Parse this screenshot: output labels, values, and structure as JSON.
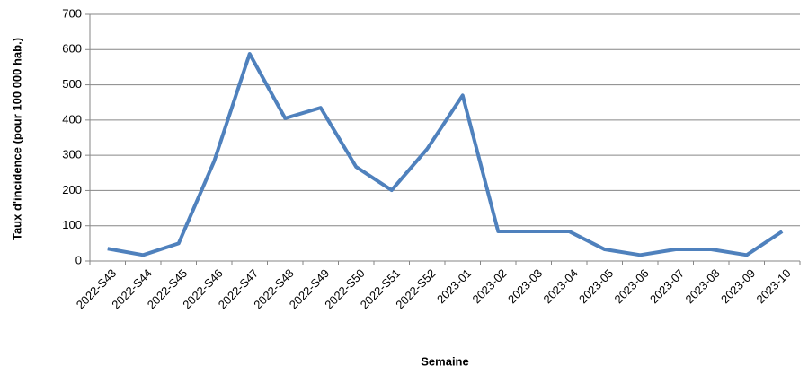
{
  "chart_data": {
    "type": "line",
    "x_label": "Semaine",
    "y_label": "Taux d'incidence (pour 100 000 hab.)",
    "categories": [
      "2022-S43",
      "2022-S44",
      "2022-S45",
      "2022-S46",
      "2022-S47",
      "2022-S48",
      "2022-S49",
      "2022-S50",
      "2022-S51",
      "2022-S52",
      "2023-01",
      "2023-02",
      "2023-03",
      "2023-04",
      "2023-05",
      "2023-06",
      "2023-07",
      "2023-08",
      "2023-09",
      "2023-10"
    ],
    "values": [
      35,
      17,
      50,
      283,
      588,
      405,
      435,
      267,
      201,
      318,
      470,
      84,
      84,
      84,
      33,
      17,
      33,
      33,
      17,
      84
    ],
    "color": "#4f81bd",
    "ylim": [
      0,
      700
    ],
    "yticks": [
      0,
      100,
      200,
      300,
      400,
      500,
      600,
      700
    ],
    "grid": true
  }
}
